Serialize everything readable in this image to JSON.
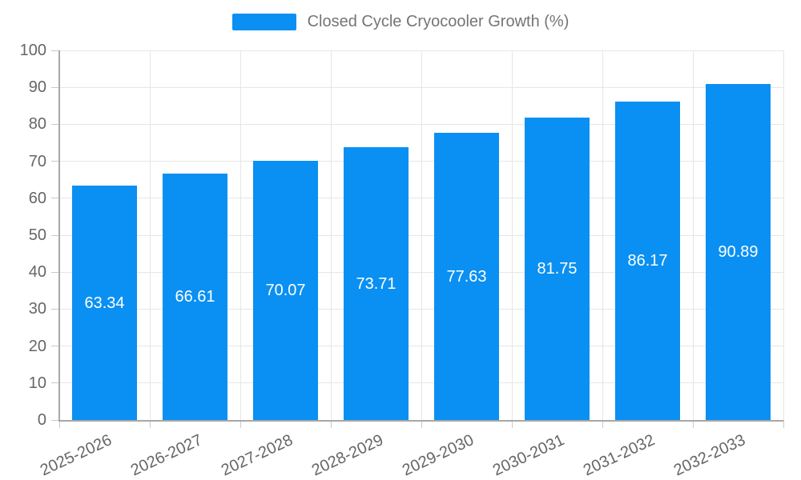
{
  "page": {
    "background_color": "#ffffff"
  },
  "legend": {
    "position": "top-center",
    "label": "Closed Cycle Cryocooler Growth (%)"
  },
  "chart_data": {
    "type": "bar",
    "title": "Closed Cycle Cryocooler Growth (%)",
    "categories": [
      "2025-2026",
      "2026-2027",
      "2027-2028",
      "2028-2029",
      "2029-2030",
      "2030-2031",
      "2031-2032",
      "2032-2033"
    ],
    "values": [
      63.34,
      66.61,
      70.07,
      73.71,
      77.63,
      81.75,
      86.17,
      90.89
    ],
    "value_labels": [
      "63.34",
      "66.61",
      "70.07",
      "73.71",
      "77.63",
      "81.75",
      "86.17",
      "90.89"
    ],
    "xlabel": "",
    "ylabel": "",
    "ylim": [
      0,
      100
    ],
    "ytick_step": 10,
    "ytick_labels": [
      "0",
      "10",
      "20",
      "30",
      "40",
      "50",
      "60",
      "70",
      "80",
      "90",
      "100"
    ],
    "grid": true,
    "legend_position": "top-center",
    "x_label_rotation_deg": -25,
    "colors": {
      "bar": "#0a90f2",
      "value_label": "#ffffff",
      "axis_line": "#a8a8a8",
      "gridline": "#e6e6e6",
      "tick": "#c9c9c9",
      "axis_label": "#666666",
      "legend_text": "#757575"
    }
  }
}
